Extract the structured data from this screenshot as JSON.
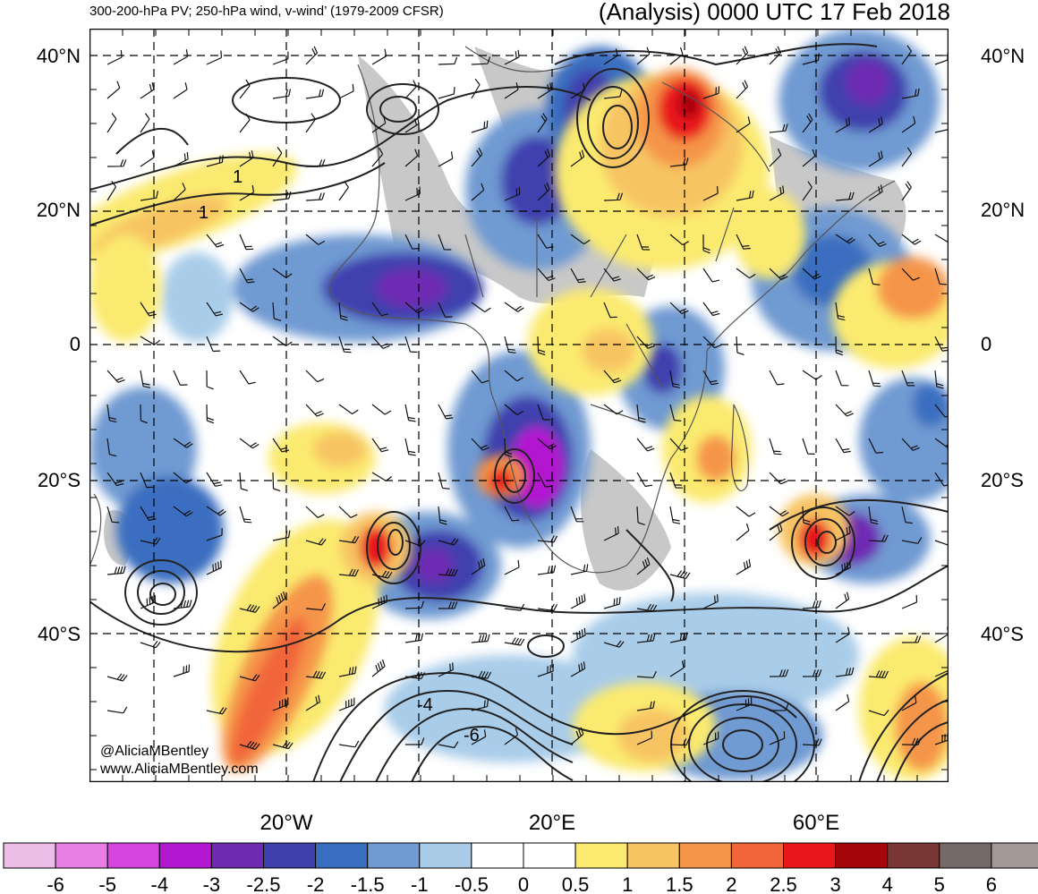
{
  "header": {
    "left_title": "300-200-hPa PV; 250-hPa wind, v-wind’ (1979-2009 CFSR)",
    "right_title": "(Analysis) 0000 UTC 17 Feb 2018"
  },
  "axes": {
    "lat_labels": [
      "40°N",
      "20°N",
      "0",
      "20°S",
      "40°S"
    ],
    "lon_labels": [
      "20°W",
      "20°E",
      "60°E"
    ]
  },
  "contour_labels": [
    "1",
    "1",
    "-4",
    "-6"
  ],
  "credit": {
    "handle": "@AliciaMBentley",
    "site": "www.AliciaMBentley.com"
  },
  "colorbar": {
    "labels": [
      "-6",
      "-5",
      "-4",
      "-3",
      "-2.5",
      "-2",
      "-1.5",
      "-1",
      "-0.5",
      "0",
      "0.5",
      "1",
      "1.5",
      "2",
      "2.5",
      "3",
      "4",
      "5",
      "6"
    ],
    "colors": [
      "#ecbde6",
      "#e77fe6",
      "#d644de",
      "#b317d0",
      "#6e2bb2",
      "#3f3fae",
      "#3a6ec0",
      "#6f9ad2",
      "#a9cce9",
      "#ffffff",
      "#ffffff",
      "#fbea6f",
      "#f7c463",
      "#f59548",
      "#f1653b",
      "#e8171a",
      "#a5060a",
      "#7a3535",
      "#766a68",
      "#a39a98"
    ]
  },
  "colors": {
    "land_gray": "#c8c8c8",
    "frame": "#000000"
  }
}
